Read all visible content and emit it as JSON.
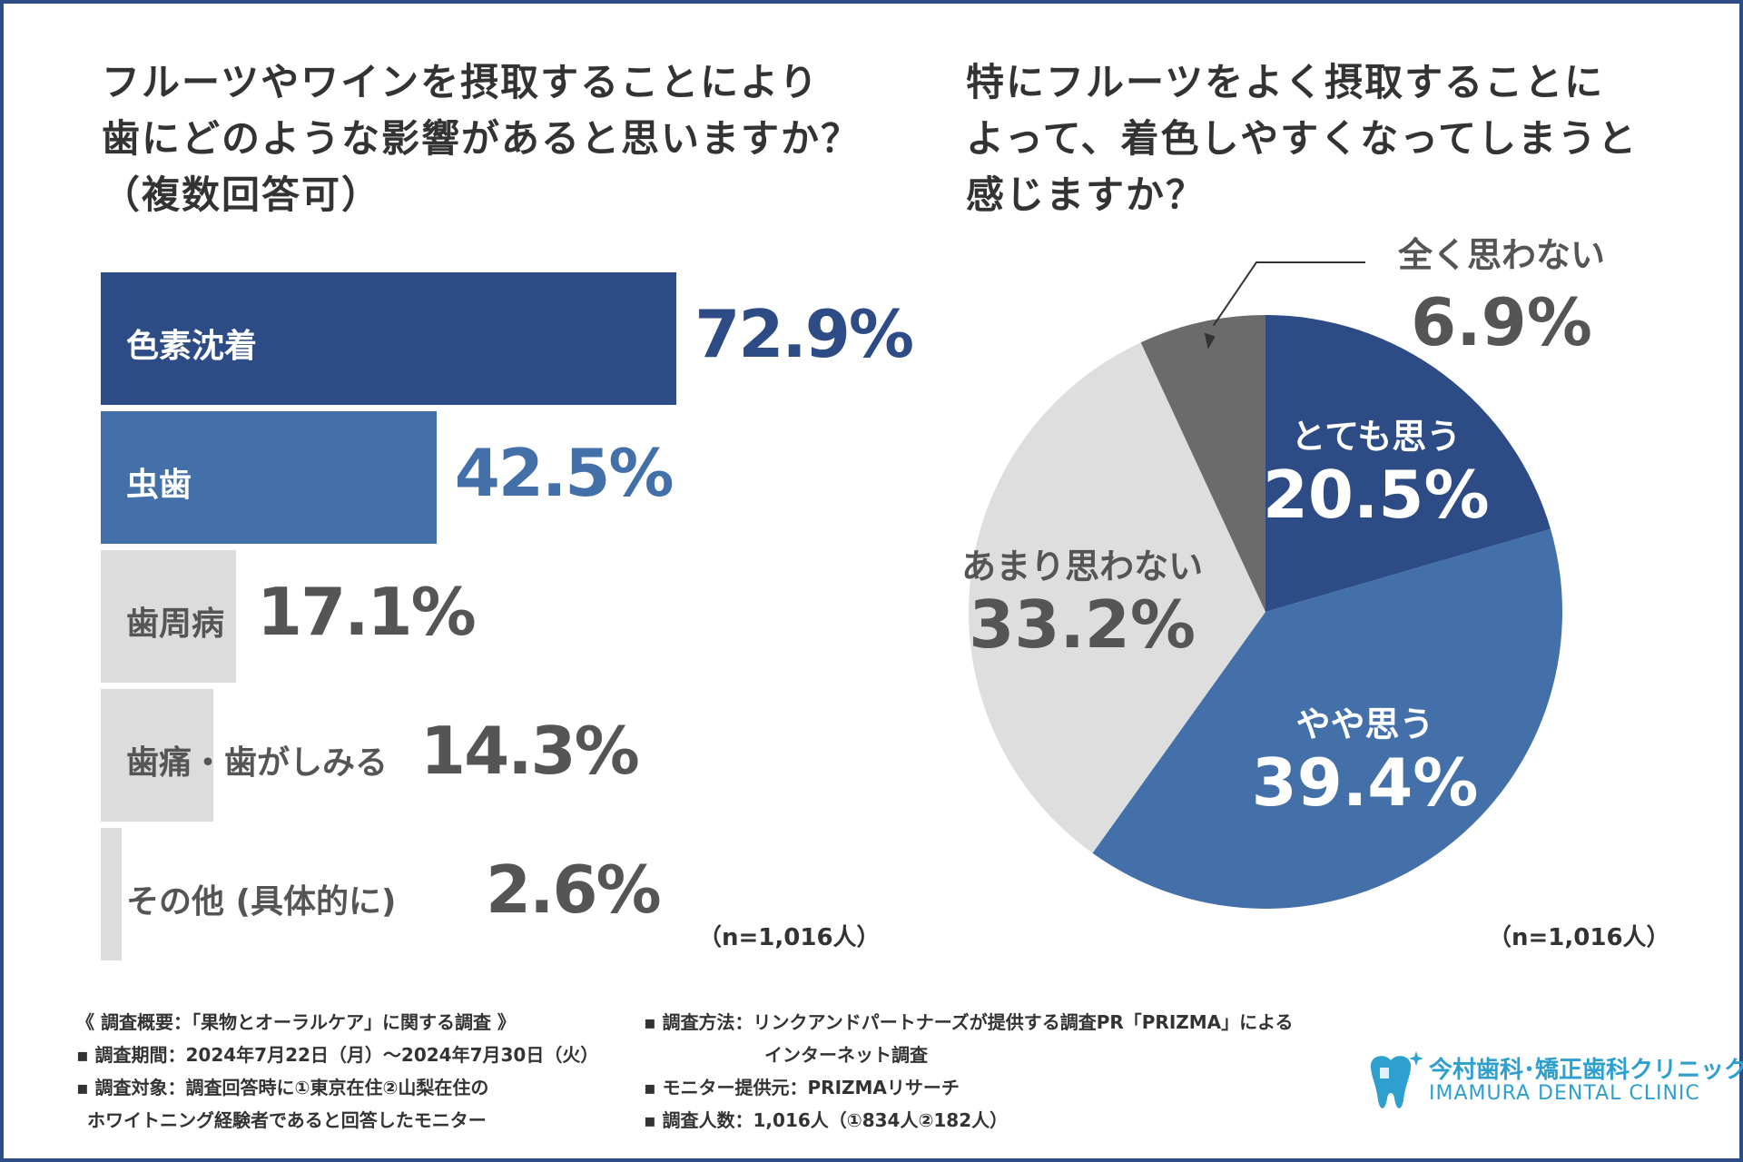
{
  "left_title": {
    "line1": "フルーツやワインを摂取することにより",
    "line2": "歯にどのような影響があると思いますか？",
    "line3": "（複数回答可）"
  },
  "right_title": {
    "line1": "特にフルーツをよく摂取することに",
    "line2": "よって、着色しやすくなってしまうと",
    "line3": "感じますか？"
  },
  "chart_data": [
    {
      "type": "bar",
      "orientation": "horizontal",
      "title": "フルーツやワインを摂取することにより歯にどのような影響があると思いますか？（複数回答可）",
      "categories": [
        "色素沈着",
        "虫歯",
        "歯周病",
        "歯痛・歯がしみる",
        "その他 (具体的に)"
      ],
      "values": [
        72.9,
        42.5,
        17.1,
        14.3,
        2.6
      ],
      "value_labels": [
        "72.9%",
        "42.5%",
        "17.1%",
        "14.3%",
        "2.6%"
      ],
      "unit": "%",
      "xlim": [
        0,
        100
      ],
      "colors": [
        "#2d4b85",
        "#4470aa",
        "#dcdcdc",
        "#dcdcdc",
        "#dcdcdc"
      ],
      "n_label": "（n=1,016人）"
    },
    {
      "type": "pie",
      "title": "特にフルーツをよく摂取することによって、着色しやすくなってしまうと感じますか？",
      "labels": [
        "とても思う",
        "やや思う",
        "あまり思わない",
        "全く思わない"
      ],
      "values": [
        20.5,
        39.4,
        33.2,
        6.9
      ],
      "value_labels": [
        "20.5%",
        "39.4%",
        "33.2%",
        "6.9%"
      ],
      "unit": "%",
      "colors": [
        "#2d4b85",
        "#4470aa",
        "#dedede",
        "#6b6b6b"
      ],
      "n_label": "（n=1,016人）"
    }
  ],
  "footer": {
    "overview": "《 調査概要：「果物とオーラルケア」に関する調査 》",
    "period": "▪ 調査期間：2024年7月22日（月）〜2024年7月30日（火）",
    "target_line1": "▪ 調査対象：調査回答時に①東京在住②山梨在住の",
    "target_line2": "ホワイトニング経験者であると回答したモニター",
    "method_line1": "▪ 調査方法：リンクアンドパートナーズが提供する調査PR「PRIZMA」による",
    "method_line2": "インターネット調査",
    "provider": "▪ モニター提供元：PRIZMAリサーチ",
    "count": "▪ 調査人数：1,016人（①834人②182人）"
  },
  "logo": {
    "jp": "今村歯科･矯正歯科クリニック",
    "en": "IMAMURA DENTAL CLINIC",
    "color": "#2f9fd0"
  }
}
